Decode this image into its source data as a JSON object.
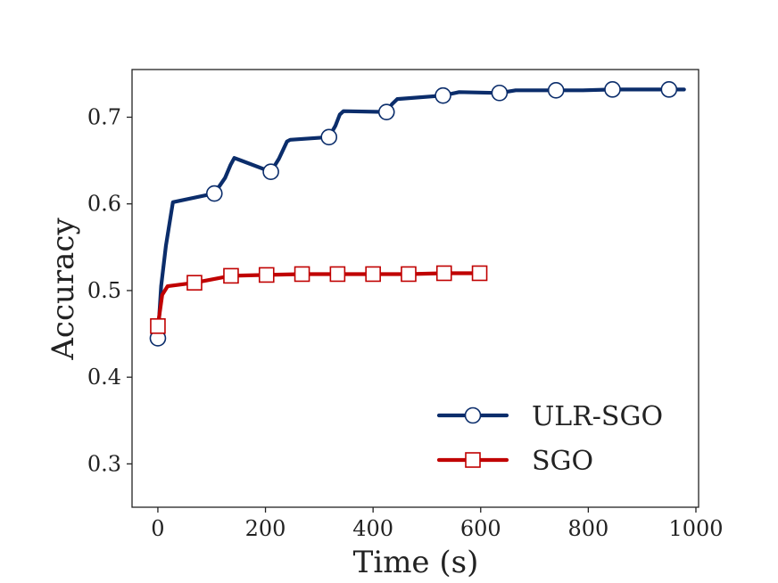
{
  "chart_data": {
    "type": "line",
    "title": "",
    "xlabel": "Time (s)",
    "ylabel": "Accuracy",
    "xlim": [
      -48,
      1005
    ],
    "ylim": [
      0.25,
      0.755
    ],
    "x_ticks": [
      0,
      200,
      400,
      600,
      800,
      1000
    ],
    "y_ticks": [
      0.3,
      0.4,
      0.5,
      0.6,
      0.7
    ],
    "x_tick_labels": [
      "0",
      "200",
      "400",
      "600",
      "800",
      "1000"
    ],
    "y_tick_labels": [
      "0.3",
      "0.4",
      "0.5",
      "0.6",
      "0.7"
    ],
    "grid": false,
    "legend_position": "bottom-right",
    "series": [
      {
        "name": "ULR-SGO",
        "color": "#0b2d6b",
        "marker": "circle",
        "line": [
          [
            0,
            0.445
          ],
          [
            6,
            0.505
          ],
          [
            15,
            0.552
          ],
          [
            28,
            0.602
          ],
          [
            105,
            0.612
          ],
          [
            125,
            0.63
          ],
          [
            135,
            0.645
          ],
          [
            142,
            0.653
          ],
          [
            155,
            0.65
          ],
          [
            210,
            0.637
          ],
          [
            225,
            0.652
          ],
          [
            240,
            0.672
          ],
          [
            246,
            0.674
          ],
          [
            318,
            0.677
          ],
          [
            330,
            0.69
          ],
          [
            338,
            0.703
          ],
          [
            345,
            0.707
          ],
          [
            425,
            0.706
          ],
          [
            435,
            0.715
          ],
          [
            445,
            0.721
          ],
          [
            530,
            0.725
          ],
          [
            560,
            0.729
          ],
          [
            635,
            0.728
          ],
          [
            665,
            0.731
          ],
          [
            740,
            0.731
          ],
          [
            790,
            0.731
          ],
          [
            845,
            0.732
          ],
          [
            950,
            0.732
          ],
          [
            978,
            0.732
          ]
        ],
        "markers": [
          [
            0,
            0.445
          ],
          [
            105,
            0.612
          ],
          [
            210,
            0.637
          ],
          [
            318,
            0.677
          ],
          [
            425,
            0.706
          ],
          [
            530,
            0.725
          ],
          [
            635,
            0.728
          ],
          [
            740,
            0.731
          ],
          [
            845,
            0.732
          ],
          [
            950,
            0.732
          ]
        ]
      },
      {
        "name": "SGO",
        "color": "#c00000",
        "marker": "square",
        "line": [
          [
            0,
            0.459
          ],
          [
            8,
            0.495
          ],
          [
            18,
            0.505
          ],
          [
            68,
            0.509
          ],
          [
            136,
            0.517
          ],
          [
            202,
            0.518
          ],
          [
            268,
            0.519
          ],
          [
            334,
            0.519
          ],
          [
            400,
            0.519
          ],
          [
            466,
            0.519
          ],
          [
            532,
            0.52
          ],
          [
            600,
            0.52
          ],
          [
            608,
            0.52
          ]
        ],
        "markers": [
          [
            0,
            0.459
          ],
          [
            68,
            0.509
          ],
          [
            136,
            0.517
          ],
          [
            202,
            0.518
          ],
          [
            268,
            0.519
          ],
          [
            334,
            0.519
          ],
          [
            400,
            0.519
          ],
          [
            466,
            0.519
          ],
          [
            532,
            0.52
          ],
          [
            598,
            0.52
          ]
        ]
      }
    ]
  }
}
